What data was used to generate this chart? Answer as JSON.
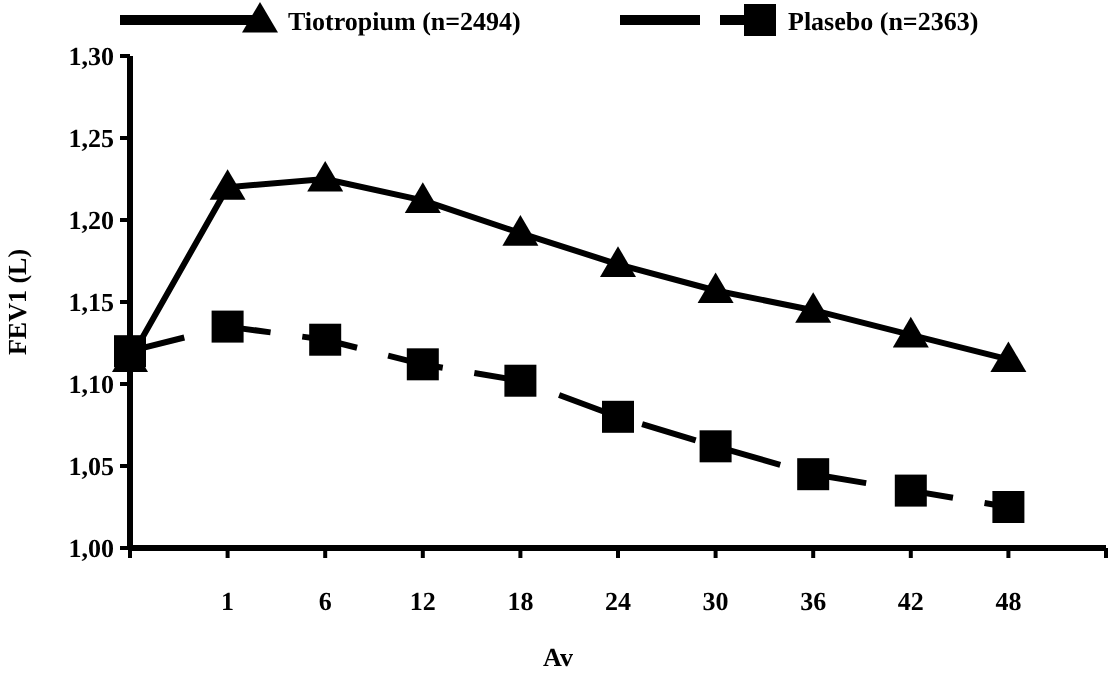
{
  "chart_data": {
    "type": "line",
    "xlabel": "Av",
    "ylabel": "FEV1 (L)",
    "categories": [
      null,
      "1",
      "6",
      "12",
      "18",
      "24",
      "30",
      "36",
      "42",
      "48",
      null
    ],
    "series": [
      {
        "name": "Tiotropium (n=2494)",
        "color": "#000000",
        "marker": "triangle",
        "line_style": "solid",
        "values": [
          1.115,
          1.22,
          1.225,
          1.212,
          1.192,
          1.173,
          1.157,
          1.145,
          1.13,
          1.115,
          null
        ]
      },
      {
        "name": "Plasebo (n=2363)",
        "color": "#000000",
        "marker": "square",
        "line_style": "dashed",
        "values": [
          1.12,
          1.135,
          1.127,
          1.112,
          1.102,
          1.08,
          1.062,
          1.045,
          1.035,
          1.025,
          null
        ]
      }
    ],
    "ylim": [
      1.0,
      1.3
    ],
    "yticks": [
      {
        "value": 1.0,
        "label": "1,00"
      },
      {
        "value": 1.05,
        "label": "1,05"
      },
      {
        "value": 1.1,
        "label": "1,10"
      },
      {
        "value": 1.15,
        "label": "1,15"
      },
      {
        "value": 1.2,
        "label": "1,20"
      },
      {
        "value": 1.25,
        "label": "1,25"
      },
      {
        "value": 1.3,
        "label": "1,30"
      }
    ],
    "grid": false,
    "legend": "top"
  }
}
